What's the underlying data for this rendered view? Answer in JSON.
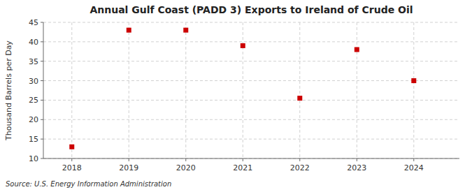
{
  "chart_data": {
    "type": "scatter",
    "title": "Annual Gulf Coast (PADD 3) Exports to Ireland of Crude Oil",
    "y_label": "Thousand Barrels per Day",
    "source": "Source: U.S. Energy Information Administration",
    "x": [
      2018,
      2019,
      2020,
      2021,
      2022,
      2023,
      2024
    ],
    "values": [
      13.0,
      43.0,
      43.0,
      39.0,
      25.5,
      38.0,
      30.0
    ],
    "color": "#cc0000",
    "marker": "square",
    "xlim": [
      2017.5,
      2024.8
    ],
    "xticks": [
      2018,
      2019,
      2020,
      2021,
      2022,
      2023,
      2024
    ],
    "ylim": [
      10,
      45
    ],
    "yticks": [
      10,
      15,
      20,
      25,
      30,
      35,
      40,
      45
    ],
    "grid": true
  }
}
